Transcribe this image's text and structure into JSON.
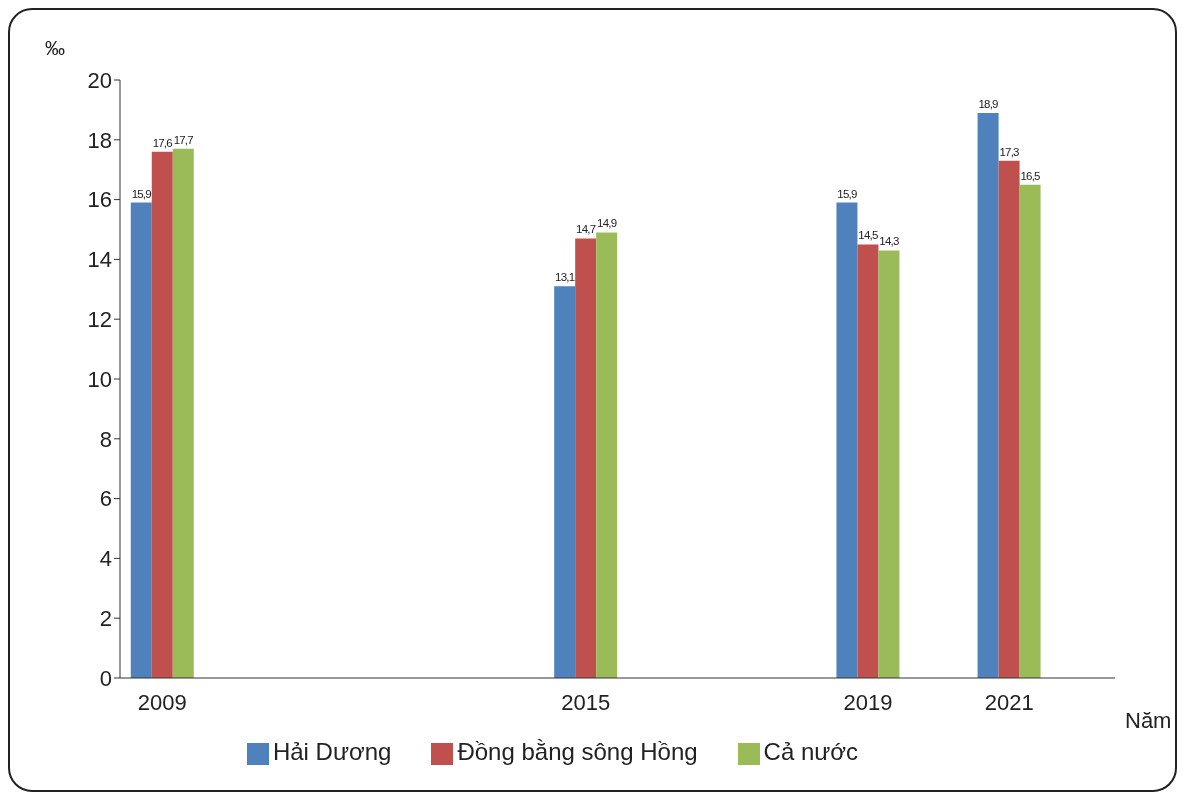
{
  "chart_data": {
    "type": "bar",
    "x": [
      2009,
      2015,
      2019,
      2021
    ],
    "xlim": [
      2008.4,
      2022.5
    ],
    "xticks": [
      2009,
      2015,
      2019,
      2021
    ],
    "ylim": [
      0,
      20
    ],
    "yticks": [
      0,
      2,
      4,
      6,
      8,
      10,
      12,
      14,
      16,
      18,
      20
    ],
    "ylabel": "‰",
    "xlabel": "Năm",
    "series": [
      {
        "name": "Hải Dương",
        "color": "#4f81bd",
        "values": [
          15.9,
          13.1,
          15.9,
          18.9
        ],
        "value_labels": [
          "15,9",
          "13,1",
          "15,9",
          "18,9"
        ]
      },
      {
        "name": "Đồng bằng sông Hồng",
        "color": "#c0504d",
        "values": [
          17.6,
          14.7,
          14.5,
          17.3
        ],
        "value_labels": [
          "17,6",
          "14,7",
          "14,5",
          "17,3"
        ]
      },
      {
        "name": "Cả nước",
        "color": "#9bbb59",
        "values": [
          17.7,
          14.9,
          14.3,
          16.5
        ],
        "value_labels": [
          "17,7",
          "14,9",
          "14,3",
          "16,5"
        ]
      }
    ],
    "grid": false,
    "legend": "bottom"
  }
}
